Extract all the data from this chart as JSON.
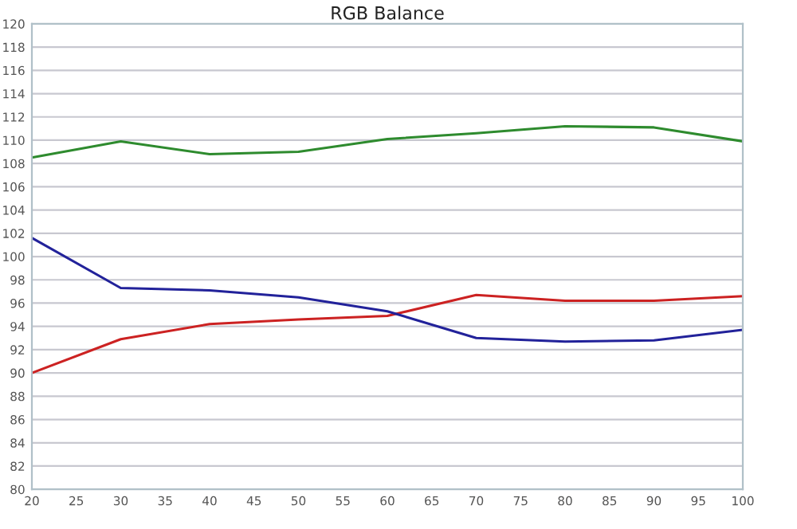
{
  "chart_data": {
    "type": "line",
    "title": "RGB Balance",
    "x": [
      20,
      30,
      40,
      50,
      60,
      70,
      80,
      90,
      100
    ],
    "series": [
      {
        "color": "#2e8b2e",
        "values": [
          108.5,
          109.9,
          108.8,
          109.0,
          110.1,
          110.6,
          111.2,
          111.1,
          109.9
        ]
      },
      {
        "color": "#cc2222",
        "values": [
          90.0,
          92.9,
          94.2,
          94.6,
          94.9,
          96.7,
          96.2,
          96.2,
          96.6
        ]
      },
      {
        "color": "#22229a",
        "values": [
          101.6,
          97.3,
          97.1,
          96.5,
          95.3,
          93.0,
          92.7,
          92.8,
          93.7
        ]
      }
    ],
    "xlim": [
      20,
      100
    ],
    "xticks": [
      20,
      25,
      30,
      35,
      40,
      45,
      50,
      55,
      60,
      65,
      70,
      75,
      80,
      85,
      90,
      95,
      100
    ],
    "ylim": [
      80,
      120
    ],
    "yticks": [
      80,
      82,
      84,
      86,
      88,
      90,
      92,
      94,
      96,
      98,
      100,
      102,
      104,
      106,
      108,
      110,
      112,
      114,
      116,
      118,
      120
    ],
    "grid": "y",
    "marker": "none",
    "line_style": "solid"
  }
}
